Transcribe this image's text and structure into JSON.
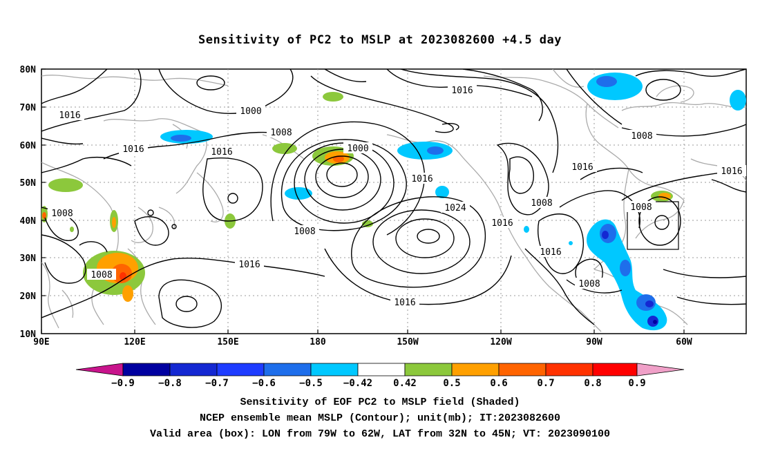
{
  "title": "Sensitivity of PC2 to MSLP at 2023082600 +4.5 day",
  "axes": {
    "lat_labels": [
      "80N",
      "70N",
      "60N",
      "50N",
      "40N",
      "30N",
      "20N",
      "10N"
    ],
    "lon_labels": [
      "90E",
      "120E",
      "150E",
      "180",
      "150W",
      "120W",
      "90W",
      "60W"
    ]
  },
  "contour_labels": [
    {
      "text": "1016"
    },
    {
      "text": "1000"
    },
    {
      "text": "1016"
    },
    {
      "text": "1008"
    },
    {
      "text": "1016"
    },
    {
      "text": "1016"
    },
    {
      "text": "1000"
    },
    {
      "text": "1016"
    },
    {
      "text": "1008"
    },
    {
      "text": "1016"
    },
    {
      "text": "1024"
    },
    {
      "text": "1008"
    },
    {
      "text": "1008"
    },
    {
      "text": "1016"
    },
    {
      "text": "1016"
    },
    {
      "text": "1008"
    },
    {
      "text": "1008"
    },
    {
      "text": "1016"
    },
    {
      "text": "1008"
    },
    {
      "text": "1016"
    }
  ],
  "colorbar": {
    "colors": [
      "#0000a0",
      "#1428d2",
      "#1e3cff",
      "#1e6eeb",
      "#00a0ff",
      "#00c8ff",
      "#ffffff",
      "#8cc83c",
      "#ffa000",
      "#ff6400",
      "#ff3200",
      "#ff0000"
    ],
    "left_arrow_color": "#c8148c",
    "right_arrow_color": "#f0a0c8",
    "labels": [
      "−0.9",
      "−0.8",
      "−0.7",
      "−0.6",
      "−0.5",
      "−0.42",
      "0.42",
      "0.5",
      "0.6",
      "0.7",
      "0.8",
      "0.9"
    ]
  },
  "captions": {
    "line1": "Sensitivity of EOF PC2 to MSLP field (Shaded)",
    "line2": "NCEP ensemble mean MSLP (Contour); unit(mb); IT:2023082600",
    "line3": "Valid area (box): LON from 79W to 62W, LAT from 32N to 45N; VT: 2023090100"
  }
}
